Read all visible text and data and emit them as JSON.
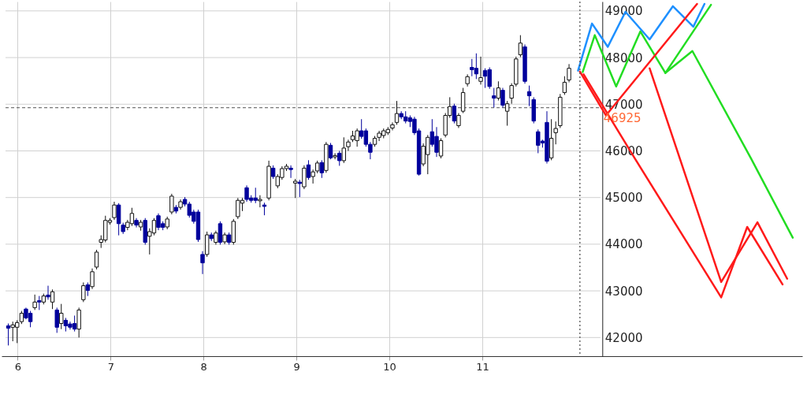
{
  "chart_data": {
    "type": "candlestick",
    "x": [
      5.9,
      5.948,
      5.995,
      6.043,
      6.09,
      6.138,
      6.185,
      6.233,
      6.28,
      6.328,
      6.375,
      6.423,
      6.47,
      6.518,
      6.565,
      6.613,
      6.66,
      6.708,
      6.755,
      6.803,
      6.85,
      6.898,
      6.945,
      6.993,
      7.04,
      7.088,
      7.135,
      7.183,
      7.23,
      7.278,
      7.325,
      7.373,
      7.42,
      7.468,
      7.515,
      7.563,
      7.61,
      7.658,
      7.705,
      7.753,
      7.8,
      7.848,
      7.895,
      7.943,
      7.99,
      8.038,
      8.085,
      8.133,
      8.18,
      8.228,
      8.275,
      8.323,
      8.37,
      8.418,
      8.465,
      8.513,
      8.56,
      8.608,
      8.655,
      8.703,
      8.75,
      8.798,
      8.845,
      8.893,
      8.94,
      8.988,
      9.035,
      9.083,
      9.13,
      9.178,
      9.225,
      9.273,
      9.32,
      9.368,
      9.415,
      9.463,
      9.51,
      9.558,
      9.605,
      9.653,
      9.7,
      9.748,
      9.795,
      9.843,
      9.89,
      9.938,
      9.985,
      10.033,
      10.08,
      10.128,
      10.175,
      10.223,
      10.27,
      10.318,
      10.365,
      10.413,
      10.46,
      10.508,
      10.555,
      10.603,
      10.65,
      10.698,
      10.745,
      10.793,
      10.84,
      10.888,
      10.935,
      10.983,
      11.03,
      11.078,
      11.125,
      11.173,
      11.22,
      11.268,
      11.315,
      11.363,
      11.41,
      11.458,
      11.505,
      11.553,
      11.6,
      11.648,
      11.695,
      11.743,
      11.79,
      11.838,
      11.885,
      11.933
    ],
    "ohlc": [
      [
        42250,
        42300,
        41830,
        42200
      ],
      [
        42220,
        42340,
        41920,
        42270
      ],
      [
        42220,
        42370,
        41880,
        42320
      ],
      [
        42340,
        42570,
        42290,
        42520
      ],
      [
        42610,
        42640,
        42390,
        42420
      ],
      [
        42520,
        42570,
        42220,
        42340
      ],
      [
        42640,
        42920,
        42590,
        42760
      ],
      [
        42790,
        42890,
        42590,
        42760
      ],
      [
        42760,
        42940,
        42710,
        42890
      ],
      [
        42910,
        43110,
        42810,
        42870
      ],
      [
        42760,
        43030,
        42610,
        42980
      ],
      [
        42590,
        42640,
        42100,
        42220
      ],
      [
        42300,
        42720,
        42180,
        42520
      ],
      [
        42370,
        42420,
        42130,
        42250
      ],
      [
        42290,
        42340,
        42170,
        42220
      ],
      [
        42300,
        42470,
        42130,
        42180
      ],
      [
        42180,
        42640,
        42000,
        42590
      ],
      [
        42810,
        43180,
        42760,
        43110
      ],
      [
        43130,
        43180,
        42890,
        43010
      ],
      [
        43090,
        43480,
        43040,
        43410
      ],
      [
        43510,
        43880,
        43460,
        43830
      ],
      [
        44040,
        44190,
        43920,
        44100
      ],
      [
        44090,
        44610,
        44040,
        44510
      ],
      [
        44470,
        44560,
        44420,
        44510
      ],
      [
        44570,
        44910,
        44520,
        44840
      ],
      [
        44840,
        44880,
        44190,
        44440
      ],
      [
        44410,
        44460,
        44220,
        44270
      ],
      [
        44360,
        44520,
        44300,
        44470
      ],
      [
        44440,
        44780,
        44390,
        44660
      ],
      [
        44510,
        44560,
        44360,
        44410
      ],
      [
        44370,
        44520,
        44290,
        44470
      ],
      [
        44510,
        44560,
        43990,
        44040
      ],
      [
        44170,
        44340,
        43780,
        44270
      ],
      [
        44240,
        44560,
        44190,
        44510
      ],
      [
        44610,
        44660,
        44300,
        44360
      ],
      [
        44440,
        44490,
        44300,
        44360
      ],
      [
        44370,
        44590,
        44320,
        44540
      ],
      [
        44690,
        45080,
        44640,
        45030
      ],
      [
        44790,
        44840,
        44660,
        44710
      ],
      [
        44790,
        44960,
        44740,
        44910
      ],
      [
        44960,
        45010,
        44810,
        44860
      ],
      [
        44860,
        44910,
        44570,
        44620
      ],
      [
        44690,
        44740,
        44440,
        44490
      ],
      [
        44690,
        44740,
        44050,
        44100
      ],
      [
        43780,
        43850,
        43360,
        43600
      ],
      [
        43780,
        44270,
        43730,
        44200
      ],
      [
        44200,
        44250,
        44070,
        44120
      ],
      [
        44040,
        44290,
        43990,
        44240
      ],
      [
        44440,
        44490,
        43990,
        44040
      ],
      [
        44050,
        44250,
        44000,
        44200
      ],
      [
        44200,
        44250,
        43990,
        44040
      ],
      [
        44040,
        44540,
        43990,
        44490
      ],
      [
        44590,
        44990,
        44540,
        44940
      ],
      [
        44880,
        44990,
        44710,
        44940
      ],
      [
        45210,
        45260,
        44910,
        44960
      ],
      [
        44990,
        45050,
        44890,
        44940
      ],
      [
        44990,
        45210,
        44880,
        44940
      ],
      [
        44930,
        45050,
        44790,
        44960
      ],
      [
        44840,
        44890,
        44620,
        44810
      ],
      [
        44990,
        45790,
        44940,
        45670
      ],
      [
        45630,
        45690,
        45400,
        45450
      ],
      [
        45250,
        45500,
        45200,
        45450
      ],
      [
        45430,
        45670,
        45380,
        45620
      ],
      [
        45620,
        45720,
        45570,
        45670
      ],
      [
        45630,
        45690,
        45420,
        45600
      ],
      [
        45310,
        45400,
        44990,
        45350
      ],
      [
        45330,
        45380,
        45010,
        45300
      ],
      [
        45230,
        45690,
        45180,
        45630
      ],
      [
        45700,
        45800,
        45380,
        45430
      ],
      [
        45450,
        45600,
        45300,
        45550
      ],
      [
        45570,
        45790,
        45520,
        45740
      ],
      [
        45750,
        45800,
        45420,
        45530
      ],
      [
        45580,
        46190,
        45530,
        46140
      ],
      [
        46120,
        46170,
        45820,
        45850
      ],
      [
        45870,
        45950,
        45820,
        45900
      ],
      [
        45950,
        46000,
        45680,
        45790
      ],
      [
        45790,
        46290,
        45740,
        46060
      ],
      [
        46090,
        46240,
        46000,
        46190
      ],
      [
        46240,
        46430,
        46190,
        46320
      ],
      [
        46220,
        46480,
        46090,
        46430
      ],
      [
        46430,
        46680,
        46260,
        46310
      ],
      [
        46430,
        46480,
        46090,
        46140
      ],
      [
        46140,
        46190,
        45820,
        45970
      ],
      [
        46140,
        46320,
        46090,
        46270
      ],
      [
        46290,
        46430,
        46210,
        46380
      ],
      [
        46330,
        46480,
        46270,
        46430
      ],
      [
        46390,
        46510,
        46340,
        46460
      ],
      [
        46490,
        46610,
        46440,
        46560
      ],
      [
        46610,
        47070,
        46560,
        46800
      ],
      [
        46800,
        46850,
        46680,
        46730
      ],
      [
        46730,
        46850,
        46590,
        46640
      ],
      [
        46710,
        46760,
        46510,
        46630
      ],
      [
        46680,
        46730,
        46340,
        46390
      ],
      [
        46430,
        46480,
        45470,
        45500
      ],
      [
        45720,
        46160,
        45670,
        46100
      ],
      [
        45920,
        46340,
        45500,
        46290
      ],
      [
        46410,
        46680,
        46090,
        46140
      ],
      [
        46310,
        46510,
        45870,
        45970
      ],
      [
        45890,
        46270,
        45840,
        46220
      ],
      [
        46340,
        46810,
        46290,
        46760
      ],
      [
        46760,
        47150,
        46710,
        46950
      ],
      [
        46960,
        47010,
        46590,
        46640
      ],
      [
        46540,
        46810,
        46490,
        46760
      ],
      [
        46850,
        47350,
        46810,
        47250
      ],
      [
        47440,
        47640,
        47380,
        47590
      ],
      [
        47790,
        47970,
        47600,
        47740
      ],
      [
        47770,
        48090,
        47540,
        47650
      ],
      [
        47490,
        48020,
        47420,
        47570
      ],
      [
        47720,
        47770,
        47350,
        47600
      ],
      [
        47740,
        47790,
        47330,
        47380
      ],
      [
        47180,
        47350,
        46930,
        47130
      ],
      [
        47130,
        47490,
        47080,
        47350
      ],
      [
        47300,
        47350,
        46930,
        46980
      ],
      [
        46850,
        47070,
        46540,
        47010
      ],
      [
        47130,
        47450,
        47010,
        47400
      ],
      [
        47430,
        48020,
        47380,
        47970
      ],
      [
        48060,
        48480,
        48010,
        48310
      ],
      [
        48230,
        48280,
        47440,
        47490
      ],
      [
        47270,
        47400,
        46960,
        47180
      ],
      [
        47100,
        47150,
        46590,
        46640
      ],
      [
        46410,
        46460,
        45950,
        46120
      ],
      [
        46210,
        46240,
        46070,
        46170
      ],
      [
        46610,
        46850,
        45730,
        45780
      ],
      [
        45850,
        46680,
        45800,
        46270
      ],
      [
        46390,
        46630,
        46140,
        46480
      ],
      [
        46540,
        47220,
        46490,
        47150
      ],
      [
        47250,
        47600,
        47200,
        47470
      ],
      [
        47520,
        47860,
        47470,
        47770
      ]
    ],
    "series": [
      {
        "type": "line",
        "color": "#1e90ff",
        "x": [
          12.03,
          12.18,
          12.35,
          12.54,
          12.8,
          13.05,
          13.27,
          13.39
        ],
        "values": [
          47720,
          48730,
          48230,
          48980,
          48390,
          49100,
          48660,
          49150
        ]
      },
      {
        "type": "line",
        "color": "#22dd22",
        "x": [
          12.08,
          12.21,
          12.44,
          12.7,
          12.97,
          13.46
        ],
        "values": [
          47690,
          48480,
          47380,
          48560,
          47670,
          49130
        ]
      },
      {
        "type": "line",
        "color": "#22dd22",
        "x": [
          12.97,
          13.26,
          13.89,
          14.34
        ],
        "values": [
          47670,
          48140,
          45840,
          44140
        ]
      },
      {
        "type": "line",
        "color": "#ff1a1a",
        "x": [
          12.05,
          12.33,
          13.31
        ],
        "values": [
          47700,
          46760,
          49150
        ]
      },
      {
        "type": "line",
        "color": "#ff1a1a",
        "x": [
          12.09,
          12.64,
          13.57,
          13.85,
          14.23
        ],
        "values": [
          47640,
          45840,
          42860,
          44370,
          43140
        ]
      },
      {
        "type": "line",
        "color": "#ff1a1a",
        "x": [
          12.8,
          13.57,
          13.96,
          14.28
        ],
        "values": [
          47770,
          43190,
          44470,
          43260
        ]
      }
    ],
    "xlim": [
      5.87,
      14.4
    ],
    "xticks": [
      6,
      7,
      8,
      9,
      10,
      11
    ],
    "ylim": [
      41600,
      49200
    ],
    "yticks": [
      42000,
      43000,
      44000,
      45000,
      46000,
      47000,
      48000,
      49000
    ],
    "grid": true,
    "ref_lines": [
      {
        "axis": "x",
        "value": 12.05,
        "line_style": "dotted"
      },
      {
        "axis": "y",
        "value": 46925,
        "label": "46925",
        "color": "#555555",
        "line_style": "dashed"
      }
    ]
  }
}
